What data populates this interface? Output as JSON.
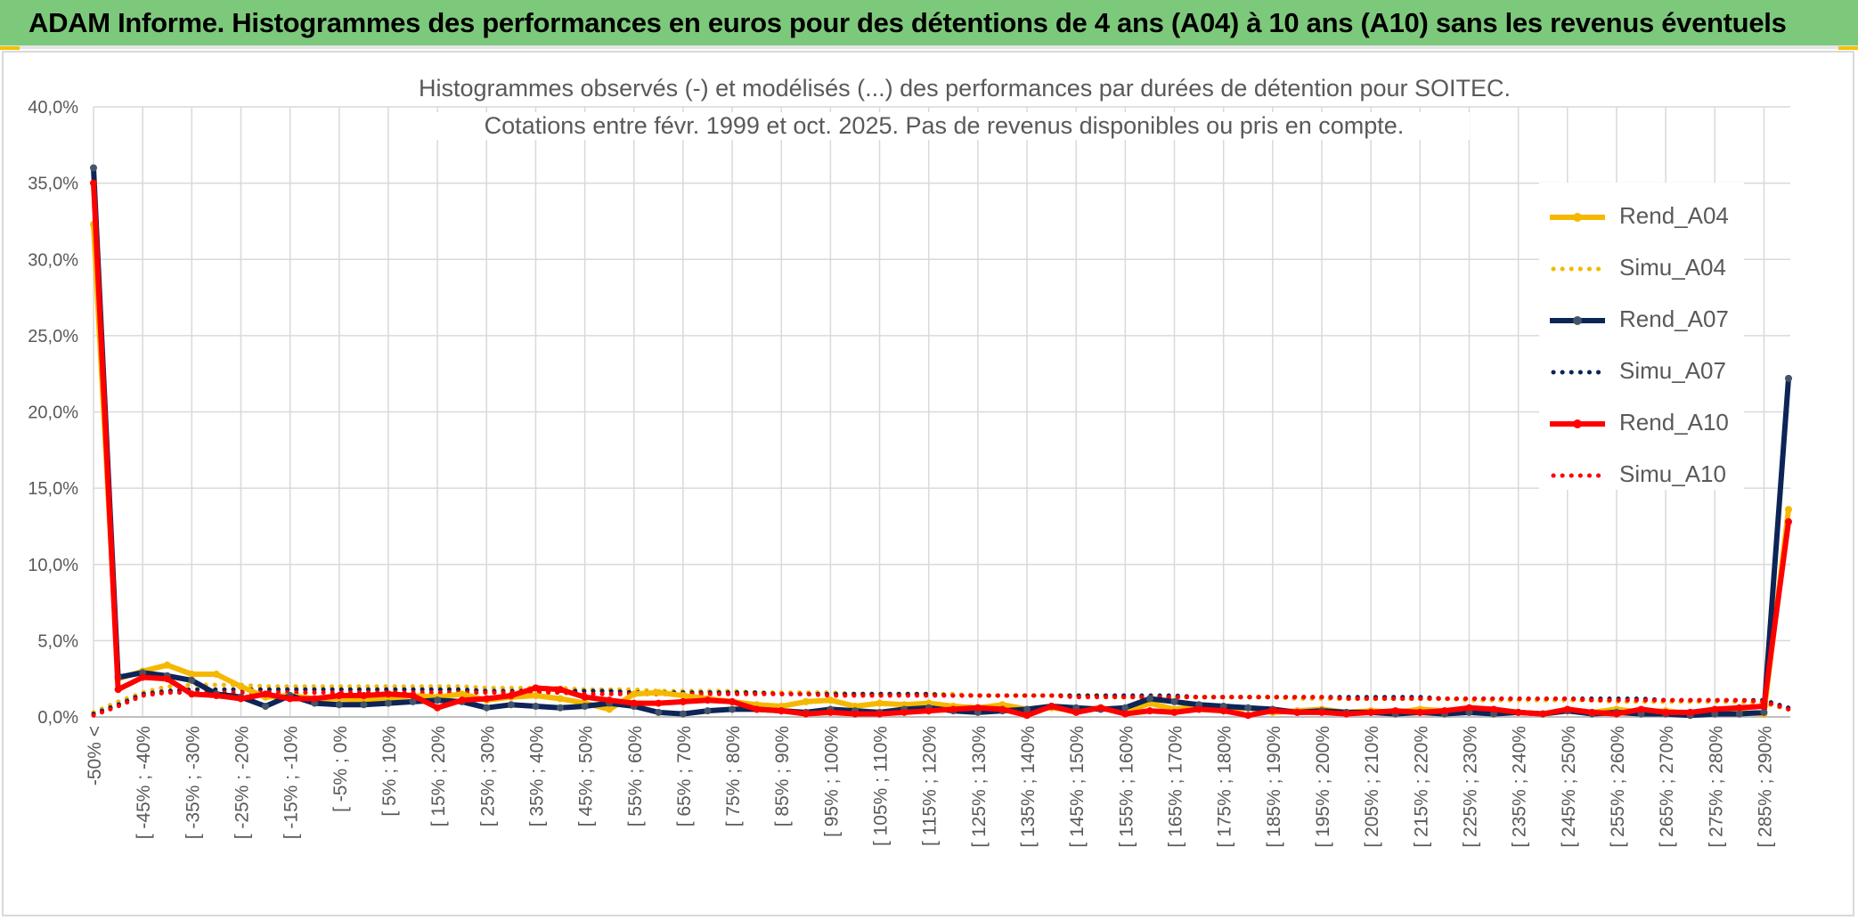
{
  "banner": {
    "title": "ADAM Informe. Histogrammes des performances en euros pour des détentions de 4 ans (A04) à 10 ans (A10) sans les revenus éventuels"
  },
  "chart_data": {
    "type": "line",
    "title": "Histogrammes observés (-) et modélisés (...) des performances par durées de détention pour SOITEC.",
    "subtitle": "Cotations entre févr. 1999 et oct. 2025. Pas de revenus disponibles ou pris en compte.",
    "xlabel": "",
    "ylabel": "",
    "ylim": [
      0,
      40
    ],
    "yticks": [
      "0,0%",
      "5,0%",
      "10,0%",
      "15,0%",
      "20,0%",
      "25,0%",
      "30,0%",
      "35,0%",
      "40,0%"
    ],
    "grid": true,
    "legend": "right",
    "x_count": 70,
    "x_tick_labels": [
      "-50% <",
      "[ -45% ; -40%",
      "[ -35% ; -30%",
      "[ -25% ; -20%",
      "[ -15% ; -10%",
      "[ -5% ; 0%",
      "[ 5% ; 10%",
      "[ 15% ; 20%",
      "[ 25% ; 30%",
      "[ 35% ; 40%",
      "[ 45% ; 50%",
      "[ 55% ; 60%",
      "[ 65% ; 70%",
      "[ 75% ; 80%",
      "[ 85% ; 90%",
      "[ 95% ; 100%",
      "[ 105% ; 110%",
      "[ 115% ; 120%",
      "[ 125% ; 130%",
      "[ 135% ; 140%",
      "[ 145% ; 150%",
      "[ 155% ; 160%",
      "[ 165% ; 170%",
      "[ 175% ; 180%",
      "[ 185% ; 190%",
      "[ 195% ; 200%",
      "[ 205% ; 210%",
      "[ 215% ; 220%",
      "[ 225% ; 230%",
      "[ 235% ; 240%",
      "[ 245% ; 250%",
      "[ 255% ; 260%",
      "[ 265% ; 270%",
      "[ 275% ; 280%",
      "[ 285% ; 290%"
    ],
    "series": [
      {
        "name": "Rend_A04",
        "style": "solid",
        "color": "#f5b800",
        "values": [
          32.3,
          2.5,
          3.0,
          3.4,
          2.8,
          2.8,
          2.0,
          1.3,
          1.4,
          1.2,
          1.2,
          1.1,
          1.2,
          1.4,
          1.3,
          1.5,
          1.1,
          1.3,
          1.4,
          1.2,
          0.9,
          0.5,
          1.5,
          1.6,
          1.4,
          1.2,
          1.0,
          0.8,
          0.7,
          1.0,
          1.1,
          0.7,
          0.9,
          0.8,
          0.9,
          0.7,
          0.6,
          0.8,
          0.5,
          0.6,
          0.4,
          0.6,
          0.3,
          0.9,
          0.5,
          0.7,
          0.4,
          0.6,
          0.3,
          0.4,
          0.5,
          0.3,
          0.4,
          0.3,
          0.5,
          0.4,
          0.3,
          0.4,
          0.3,
          0.2,
          0.4,
          0.3,
          0.5,
          0.3,
          0.4,
          0.2,
          0.4,
          0.3,
          0.2,
          13.6
        ]
      },
      {
        "name": "Simu_A04",
        "style": "dotted",
        "color": "#f5b800",
        "values": [
          0.3,
          1.0,
          1.6,
          2.0,
          2.1,
          2.1,
          2.1,
          2.0,
          2.0,
          2.0,
          2.0,
          2.0,
          2.0,
          2.0,
          2.0,
          2.0,
          1.9,
          1.9,
          1.9,
          1.9,
          1.8,
          1.8,
          1.8,
          1.7,
          1.7,
          1.7,
          1.7,
          1.6,
          1.6,
          1.6,
          1.6,
          1.5,
          1.5,
          1.5,
          1.5,
          1.5,
          1.4,
          1.4,
          1.4,
          1.4,
          1.4,
          1.4,
          1.3,
          1.3,
          1.3,
          1.3,
          1.3,
          1.3,
          1.3,
          1.2,
          1.2,
          1.2,
          1.2,
          1.2,
          1.2,
          1.2,
          1.1,
          1.1,
          1.1,
          1.1,
          1.1,
          1.1,
          1.0,
          1.0,
          1.0,
          1.0,
          1.0,
          1.0,
          0.9,
          0.5
        ]
      },
      {
        "name": "Rend_A07",
        "style": "solid",
        "color": "#0d2457",
        "values": [
          36.0,
          2.6,
          2.9,
          2.7,
          2.4,
          1.5,
          1.3,
          0.7,
          1.4,
          0.9,
          0.8,
          0.8,
          0.9,
          1.0,
          1.1,
          1.0,
          0.6,
          0.8,
          0.7,
          0.6,
          0.7,
          0.9,
          0.7,
          0.3,
          0.2,
          0.4,
          0.5,
          0.5,
          0.4,
          0.3,
          0.5,
          0.4,
          0.3,
          0.5,
          0.6,
          0.4,
          0.3,
          0.4,
          0.5,
          0.7,
          0.6,
          0.5,
          0.6,
          1.2,
          1.0,
          0.8,
          0.7,
          0.6,
          0.5,
          0.3,
          0.4,
          0.3,
          0.3,
          0.2,
          0.3,
          0.2,
          0.3,
          0.2,
          0.3,
          0.2,
          0.4,
          0.2,
          0.3,
          0.2,
          0.2,
          0.1,
          0.2,
          0.2,
          0.3,
          22.2
        ]
      },
      {
        "name": "Simu_A07",
        "style": "dotted",
        "color": "#0d2457",
        "values": [
          0.2,
          0.8,
          1.5,
          1.7,
          1.8,
          1.8,
          1.8,
          1.8,
          1.8,
          1.8,
          1.8,
          1.8,
          1.8,
          1.8,
          1.8,
          1.8,
          1.7,
          1.7,
          1.7,
          1.7,
          1.7,
          1.7,
          1.6,
          1.6,
          1.6,
          1.6,
          1.6,
          1.6,
          1.5,
          1.5,
          1.5,
          1.5,
          1.5,
          1.5,
          1.5,
          1.4,
          1.4,
          1.4,
          1.4,
          1.4,
          1.4,
          1.4,
          1.4,
          1.4,
          1.4,
          1.3,
          1.3,
          1.3,
          1.3,
          1.3,
          1.3,
          1.3,
          1.3,
          1.3,
          1.3,
          1.2,
          1.2,
          1.2,
          1.2,
          1.2,
          1.2,
          1.2,
          1.2,
          1.2,
          1.1,
          1.1,
          1.1,
          1.1,
          1.1,
          0.6
        ]
      },
      {
        "name": "Rend_A10",
        "style": "solid",
        "color": "#ff0000",
        "values": [
          35.0,
          1.8,
          2.6,
          2.5,
          1.5,
          1.4,
          1.2,
          1.5,
          1.2,
          1.2,
          1.4,
          1.4,
          1.5,
          1.4,
          0.6,
          1.1,
          1.2,
          1.4,
          1.9,
          1.8,
          1.3,
          1.1,
          0.9,
          0.9,
          1.0,
          1.1,
          1.0,
          0.5,
          0.4,
          0.2,
          0.3,
          0.2,
          0.2,
          0.3,
          0.4,
          0.5,
          0.6,
          0.5,
          0.1,
          0.7,
          0.3,
          0.6,
          0.2,
          0.4,
          0.3,
          0.5,
          0.4,
          0.1,
          0.4,
          0.3,
          0.3,
          0.2,
          0.3,
          0.4,
          0.3,
          0.4,
          0.6,
          0.5,
          0.3,
          0.2,
          0.5,
          0.3,
          0.2,
          0.5,
          0.3,
          0.3,
          0.5,
          0.6,
          0.7,
          12.8
        ]
      },
      {
        "name": "Simu_A10",
        "style": "dotted",
        "color": "#ff0000",
        "values": [
          0.1,
          0.7,
          1.4,
          1.6,
          1.6,
          1.6,
          1.6,
          1.6,
          1.6,
          1.6,
          1.6,
          1.6,
          1.6,
          1.6,
          1.6,
          1.6,
          1.6,
          1.6,
          1.6,
          1.6,
          1.5,
          1.5,
          1.5,
          1.5,
          1.5,
          1.5,
          1.5,
          1.5,
          1.5,
          1.5,
          1.4,
          1.4,
          1.4,
          1.4,
          1.4,
          1.4,
          1.4,
          1.4,
          1.4,
          1.4,
          1.3,
          1.3,
          1.3,
          1.3,
          1.3,
          1.3,
          1.3,
          1.3,
          1.3,
          1.3,
          1.3,
          1.2,
          1.2,
          1.2,
          1.2,
          1.2,
          1.2,
          1.2,
          1.2,
          1.2,
          1.2,
          1.1,
          1.1,
          1.1,
          1.1,
          1.1,
          1.1,
          1.1,
          1.0,
          0.5
        ]
      }
    ]
  }
}
